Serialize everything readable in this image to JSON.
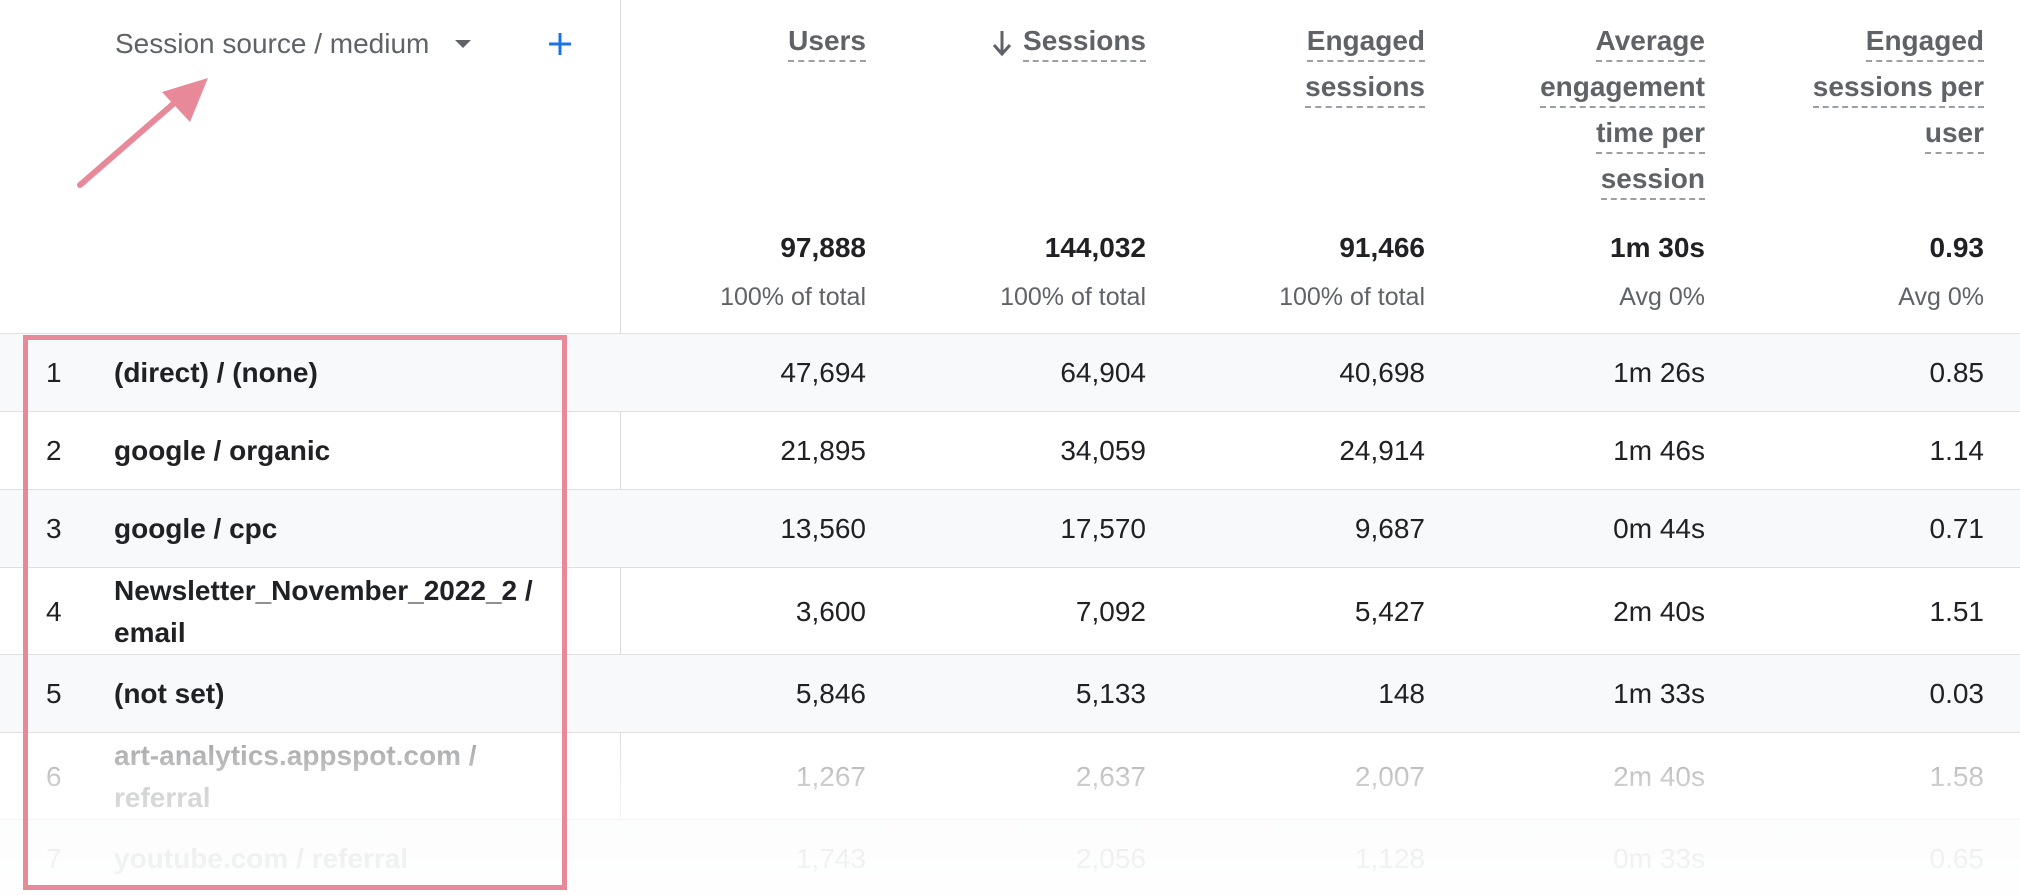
{
  "dimension": {
    "label": "Session source / medium",
    "caret_icon": "caret-down-icon",
    "add_icon": "plus-icon",
    "accent_color": "#1a73e8"
  },
  "annotation": {
    "arrow_color": "#e8899a",
    "box_color": "#e8899a"
  },
  "columns": [
    {
      "key": "users",
      "label_lines": [
        "Users"
      ],
      "sorted": false,
      "total": "97,888",
      "total_sub": "100% of total"
    },
    {
      "key": "sessions",
      "label_lines": [
        "Sessions"
      ],
      "sorted": true,
      "total": "144,032",
      "total_sub": "100% of total"
    },
    {
      "key": "engaged_sessions",
      "label_lines": [
        "Engaged",
        "sessions"
      ],
      "sorted": false,
      "total": "91,466",
      "total_sub": "100% of total"
    },
    {
      "key": "avg_engagement_time",
      "label_lines": [
        "Average",
        "engagement",
        "time per",
        "session"
      ],
      "sorted": false,
      "total": "1m 30s",
      "total_sub": "Avg 0%"
    },
    {
      "key": "engaged_sessions_per_user",
      "label_lines": [
        "Engaged",
        "sessions per",
        "user"
      ],
      "sorted": false,
      "total": "0.93",
      "total_sub": "Avg 0%"
    }
  ],
  "rows": [
    {
      "index": "1",
      "dimension_lines": [
        "(direct) / (none)"
      ],
      "values": [
        "47,694",
        "64,904",
        "40,698",
        "1m 26s",
        "0.85"
      ]
    },
    {
      "index": "2",
      "dimension_lines": [
        "google / organic"
      ],
      "values": [
        "21,895",
        "34,059",
        "24,914",
        "1m 46s",
        "1.14"
      ]
    },
    {
      "index": "3",
      "dimension_lines": [
        "google / cpc"
      ],
      "values": [
        "13,560",
        "17,570",
        "9,687",
        "0m 44s",
        "0.71"
      ]
    },
    {
      "index": "4",
      "dimension_lines": [
        "Newsletter_November_2022_2 /",
        "email"
      ],
      "values": [
        "3,600",
        "7,092",
        "5,427",
        "2m 40s",
        "1.51"
      ]
    },
    {
      "index": "5",
      "dimension_lines": [
        "(not set)"
      ],
      "values": [
        "5,846",
        "5,133",
        "148",
        "1m 33s",
        "0.03"
      ]
    },
    {
      "index": "6",
      "dimension_lines": [
        "art-analytics.appspot.com /",
        "referral"
      ],
      "values": [
        "1,267",
        "2,637",
        "2,007",
        "2m 40s",
        "1.58"
      ]
    },
    {
      "index": "7",
      "dimension_lines": [
        "youtube.com / referral"
      ],
      "values": [
        "1,743",
        "2,056",
        "1,128",
        "0m 33s",
        "0.65"
      ]
    }
  ]
}
